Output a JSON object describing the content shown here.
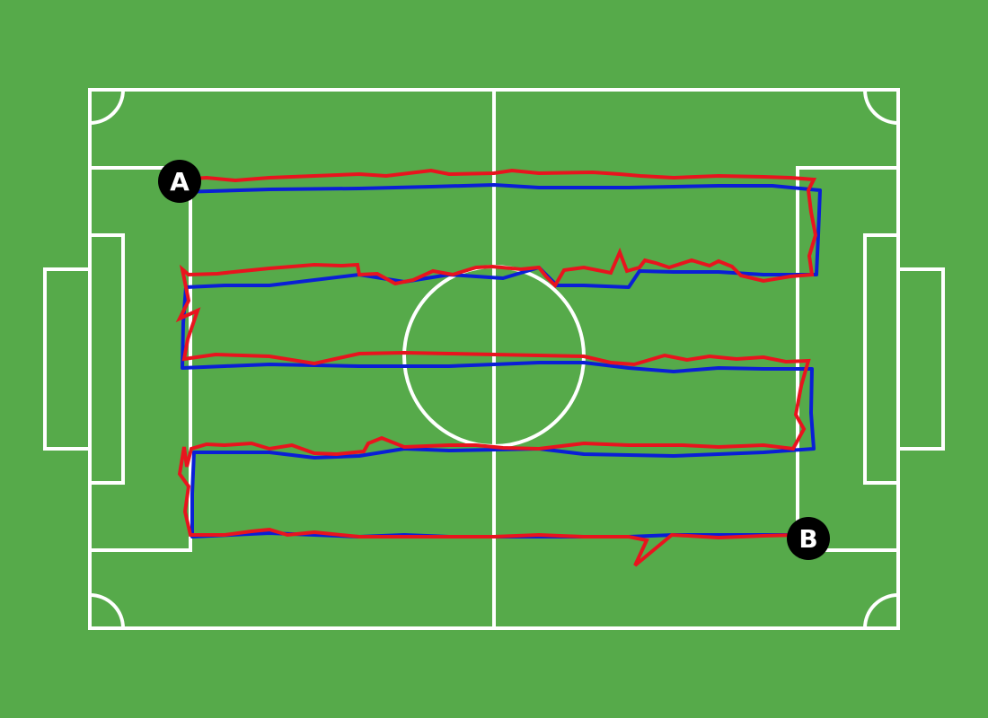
{
  "colors": {
    "grass": "#56aa4a",
    "lines": "#ffffff",
    "route_blue": "#0a1fd6",
    "route_red": "#e8141e",
    "marker_fill": "#000000",
    "marker_text": "#ffffff"
  },
  "markers": {
    "start": {
      "label": "A"
    },
    "end": {
      "label": "B"
    }
  }
}
